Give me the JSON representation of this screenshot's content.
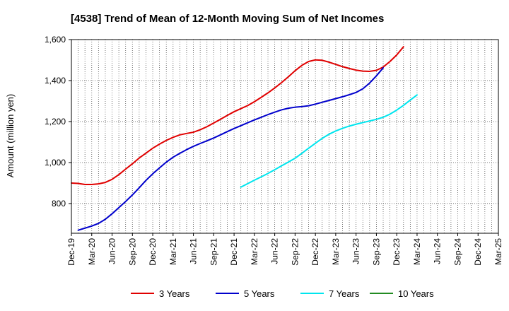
{
  "chart_data": {
    "type": "line",
    "title": "[4538]  Trend of Mean of 12-Month Moving Sum of Net Incomes",
    "xlabel": "",
    "ylabel": "Amount (million yen)",
    "x_tick_labels": [
      "Dec-19",
      "Mar-20",
      "Jun-20",
      "Sep-20",
      "Dec-20",
      "Mar-21",
      "Jun-21",
      "Sep-21",
      "Dec-21",
      "Mar-22",
      "Jun-22",
      "Sep-22",
      "Dec-22",
      "Mar-23",
      "Jun-23",
      "Sep-23",
      "Dec-23",
      "Mar-24",
      "Jun-24",
      "Sep-24",
      "Dec-24",
      "Mar-25"
    ],
    "y_ticks": [
      "800",
      "1,000",
      "1,200",
      "1,400",
      "1,600"
    ],
    "y_tick_values": [
      800,
      1000,
      1200,
      1400,
      1600
    ],
    "ylim": [
      655,
      1600
    ],
    "grid": true,
    "legend_position": "bottom",
    "series": [
      {
        "name": "3 Years",
        "color": "#e00000",
        "start_index": 0,
        "values": [
          900,
          898,
          893,
          893,
          896,
          903,
          918,
          941,
          968,
          994,
          1022,
          1046,
          1070,
          1090,
          1108,
          1123,
          1135,
          1142,
          1148,
          1160,
          1175,
          1193,
          1211,
          1230,
          1248,
          1263,
          1278,
          1297,
          1318,
          1340,
          1364,
          1390,
          1418,
          1448,
          1474,
          1493,
          1501,
          1499,
          1490,
          1479,
          1468,
          1459,
          1451,
          1446,
          1445,
          1450,
          1466,
          1493,
          1525,
          1565
        ]
      },
      {
        "name": "5 Years",
        "color": "#0000cc",
        "start_index": 1,
        "values": [
          670,
          680,
          690,
          703,
          723,
          750,
          780,
          810,
          842,
          877,
          913,
          945,
          974,
          1002,
          1026,
          1045,
          1063,
          1079,
          1093,
          1106,
          1120,
          1135,
          1151,
          1166,
          1180,
          1194,
          1208,
          1221,
          1234,
          1246,
          1257,
          1265,
          1270,
          1273,
          1277,
          1285,
          1294,
          1303,
          1312,
          1321,
          1331,
          1342,
          1360,
          1388,
          1423,
          1462
        ]
      },
      {
        "name": "7 Years",
        "color": "#00e5ee",
        "start_index": 25,
        "values": [
          880,
          897,
          914,
          930,
          947,
          965,
          984,
          1002,
          1021,
          1045,
          1070,
          1094,
          1118,
          1138,
          1154,
          1167,
          1178,
          1187,
          1195,
          1203,
          1211,
          1221,
          1236,
          1256,
          1279,
          1305,
          1330
        ]
      },
      {
        "name": "10 Years",
        "color": "#228b22",
        "start_index": 0,
        "values": []
      }
    ]
  }
}
